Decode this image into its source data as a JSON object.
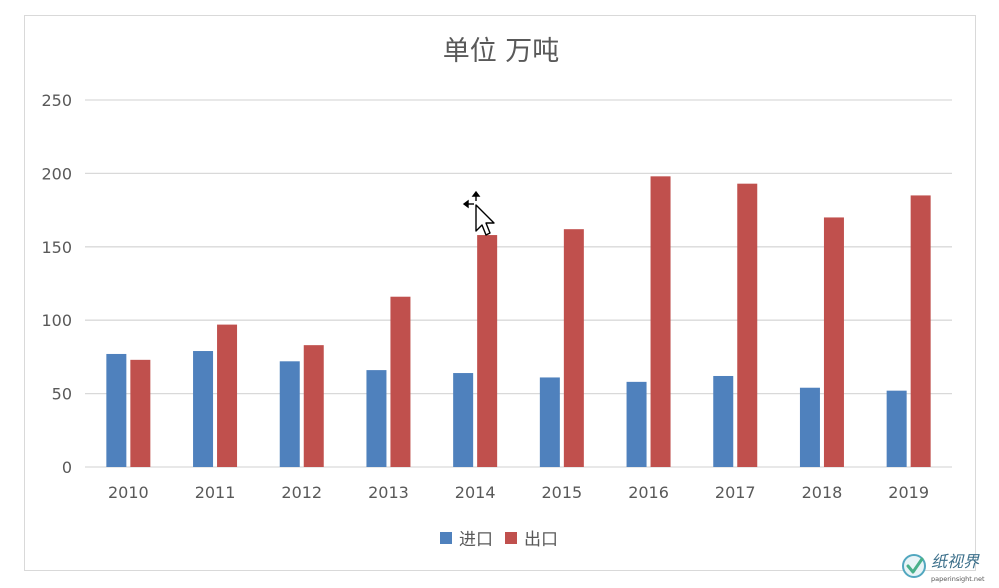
{
  "chart_data": {
    "type": "bar",
    "title": "单位 万吨",
    "categories": [
      "2010",
      "2011",
      "2012",
      "2013",
      "2014",
      "2015",
      "2016",
      "2017",
      "2018",
      "2019"
    ],
    "series": [
      {
        "name": "进口",
        "color": "#4f81bd",
        "values": [
          77,
          79,
          72,
          66,
          64,
          61,
          58,
          62,
          54,
          52
        ]
      },
      {
        "name": "出口",
        "color": "#c0504d",
        "values": [
          73,
          97,
          83,
          116,
          158,
          162,
          198,
          193,
          170,
          185
        ]
      }
    ],
    "ylim": [
      0,
      250
    ],
    "yticks": [
      0,
      50,
      100,
      150,
      200,
      250
    ],
    "grid": true,
    "legend": "bottom",
    "xlabel": "",
    "ylabel": ""
  },
  "watermark": {
    "brand": "纸视界",
    "site": "paperinsight.net"
  },
  "colors": {
    "grid": "#d9d9d9",
    "text": "#595959",
    "title": "#595959"
  }
}
